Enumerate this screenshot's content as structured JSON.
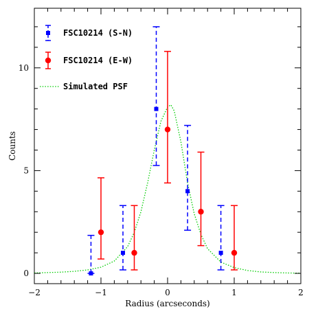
{
  "chart_data": {
    "type": "scatter",
    "xlabel": "Radius (arcseconds)",
    "ylabel": "Counts",
    "xlim": [
      -2,
      2
    ],
    "ylim": [
      -0.5,
      12.9
    ],
    "x_ticks": [
      -2,
      -1,
      0,
      1,
      2
    ],
    "y_ticks": [
      0,
      5,
      10
    ],
    "x_tick_labels": [
      "−2",
      "−1",
      "0",
      "1",
      "2"
    ],
    "y_tick_labels": [
      "0",
      "5",
      "10"
    ],
    "grid": false,
    "legend_position": "top-left",
    "series": [
      {
        "name": "FSC10214 (S-N)",
        "color": "#0000ff",
        "marker": "square",
        "line_style": "dashed",
        "points": [
          {
            "x": -1.15,
            "y": 0,
            "ylow": 0,
            "yhigh": 1.85
          },
          {
            "x": -0.67,
            "y": 1,
            "ylow": 0.17,
            "yhigh": 3.3
          },
          {
            "x": -0.17,
            "y": 8,
            "ylow": 5.25,
            "yhigh": 12.0
          },
          {
            "x": 0.3,
            "y": 4,
            "ylow": 2.1,
            "yhigh": 7.2
          },
          {
            "x": 0.8,
            "y": 1,
            "ylow": 0.17,
            "yhigh": 3.3
          }
        ]
      },
      {
        "name": "FSC10214 (E-W)",
        "color": "#ff0000",
        "marker": "circle",
        "line_style": "solid",
        "points": [
          {
            "x": -1.0,
            "y": 2,
            "ylow": 0.7,
            "yhigh": 4.65
          },
          {
            "x": -0.5,
            "y": 1,
            "ylow": 0.17,
            "yhigh": 3.3
          },
          {
            "x": 0.0,
            "y": 7,
            "ylow": 4.4,
            "yhigh": 10.8
          },
          {
            "x": 0.5,
            "y": 3,
            "ylow": 1.35,
            "yhigh": 5.9
          },
          {
            "x": 1.0,
            "y": 1,
            "ylow": 0.17,
            "yhigh": 3.3
          }
        ]
      },
      {
        "name": "Simulated PSF",
        "color": "#00cc00",
        "marker": "none",
        "line_style": "dotted",
        "x": [
          -2.0,
          -1.8,
          -1.6,
          -1.4,
          -1.2,
          -1.0,
          -0.8,
          -0.6,
          -0.5,
          -0.4,
          -0.3,
          -0.2,
          -0.1,
          0.0,
          0.05,
          0.1,
          0.2,
          0.3,
          0.4,
          0.5,
          0.6,
          0.8,
          1.0,
          1.2,
          1.4,
          1.6,
          1.8,
          2.0
        ],
        "y": [
          0.02,
          0.04,
          0.06,
          0.1,
          0.17,
          0.3,
          0.6,
          1.3,
          2.0,
          3.0,
          4.4,
          6.0,
          7.4,
          8.1,
          8.2,
          7.9,
          6.4,
          4.4,
          2.9,
          1.9,
          1.2,
          0.55,
          0.28,
          0.14,
          0.07,
          0.04,
          0.02,
          0.01
        ]
      }
    ]
  }
}
